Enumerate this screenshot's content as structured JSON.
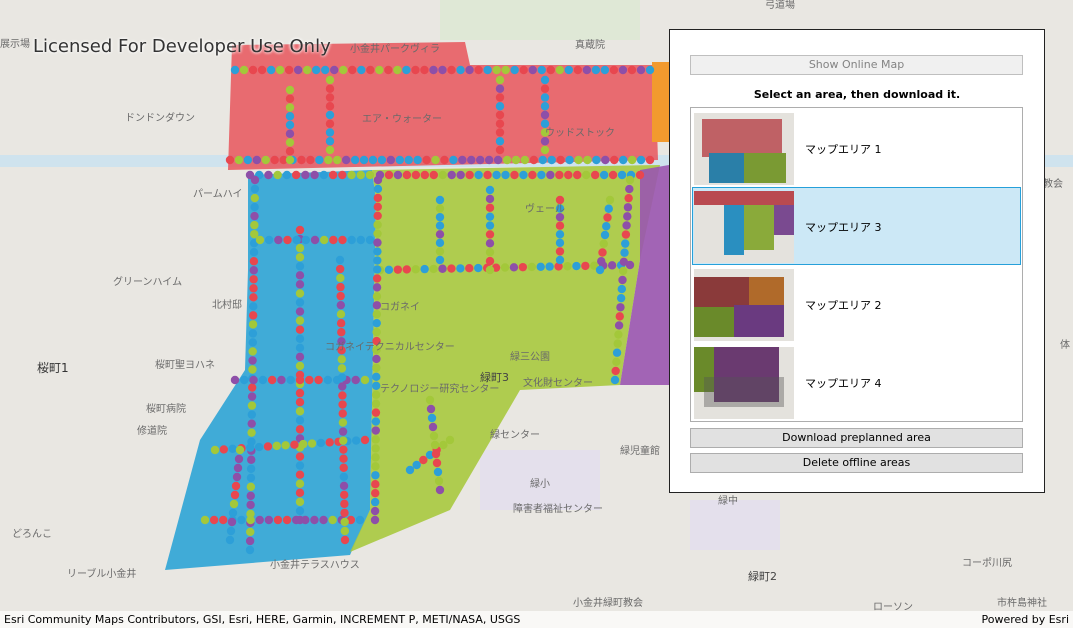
{
  "watermark": "Licensed For Developer Use Only",
  "map": {
    "labels": [
      "展示場",
      "小金井パークヴィラ",
      "真蔵院",
      "弓道場",
      "ドンドンダウン",
      "エア・ウォーター",
      "ウッドストック",
      "パームハイ",
      "ヴェール",
      "グリーンハイム",
      "北村邸",
      "コガネイ",
      "コガネイテクニカルセンター",
      "緑三公園",
      "桜町1",
      "桜町聖ヨハネ",
      "テクノロジー研究センター",
      "緑町3",
      "文化財センター",
      "桜町病院",
      "修道院",
      "緑センター",
      "緑児童館",
      "緑小",
      "障害者福祉センター",
      "緑中",
      "どろんこ",
      "リーブル小金井",
      "小金井テラスハウス",
      "緑町2",
      "コーポ川尻",
      "小金井緑町教会",
      "ローソン",
      "市杵島神社",
      "教会",
      "体"
    ]
  },
  "panel": {
    "show_online_button": "Show Online Map",
    "instruction": "Select an area, then download it.",
    "areas": [
      "マップエリア 1",
      "マップエリア 3",
      "マップエリア 2",
      "マップエリア 4"
    ],
    "download_button": "Download preplanned area",
    "delete_button": "Delete offline areas"
  },
  "attribution": {
    "sources": "Esri Community Maps Contributors, GSI, Esri, HERE, Garmin, INCREMENT P, METI/NASA, USGS",
    "powered_by": "Powered by Esri"
  }
}
